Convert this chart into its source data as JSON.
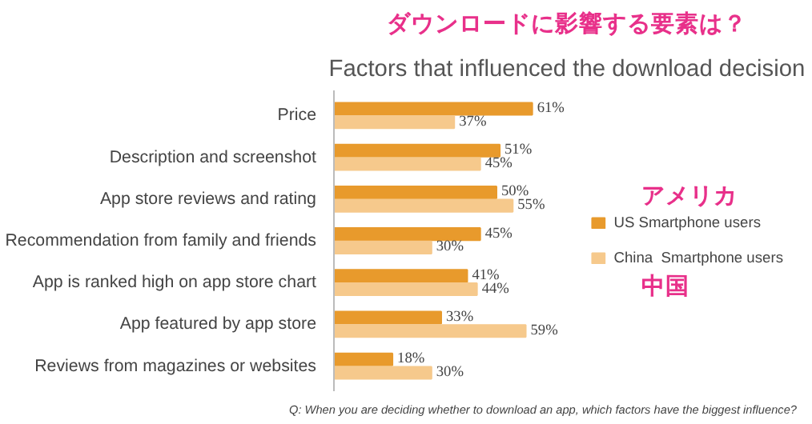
{
  "chart_data": {
    "type": "bar",
    "orientation": "horizontal",
    "title": "ダウンロードに影響する要素は？",
    "subtitle": "Factors that influenced the download decision",
    "categories": [
      "Price",
      "Description and screenshot",
      "App store reviews and rating",
      "Recommendation from family and friends",
      "App is ranked high on app store chart",
      "App featured by app store",
      "Reviews from magazines or websites"
    ],
    "series": [
      {
        "name": "US Smartphone users",
        "color": "#e89a2c",
        "values": [
          61,
          51,
          50,
          45,
          41,
          33,
          18
        ],
        "value_labels": [
          "61%",
          "51%",
          "50%",
          "45%",
          "41%",
          "33%",
          "18%"
        ]
      },
      {
        "name": "China  Smartphone users",
        "color": "#f6c98c",
        "values": [
          37,
          45,
          55,
          30,
          44,
          59,
          30
        ],
        "value_labels": [
          "37%",
          "45%",
          "55%",
          "30%",
          "44%",
          "59%",
          "30%"
        ]
      }
    ],
    "grid": false,
    "legend": "right",
    "annotations": [
      "アメリカ",
      "中国",
      "Q:  When you are deciding whether to download an app, which factors have the biggest influence?"
    ]
  }
}
